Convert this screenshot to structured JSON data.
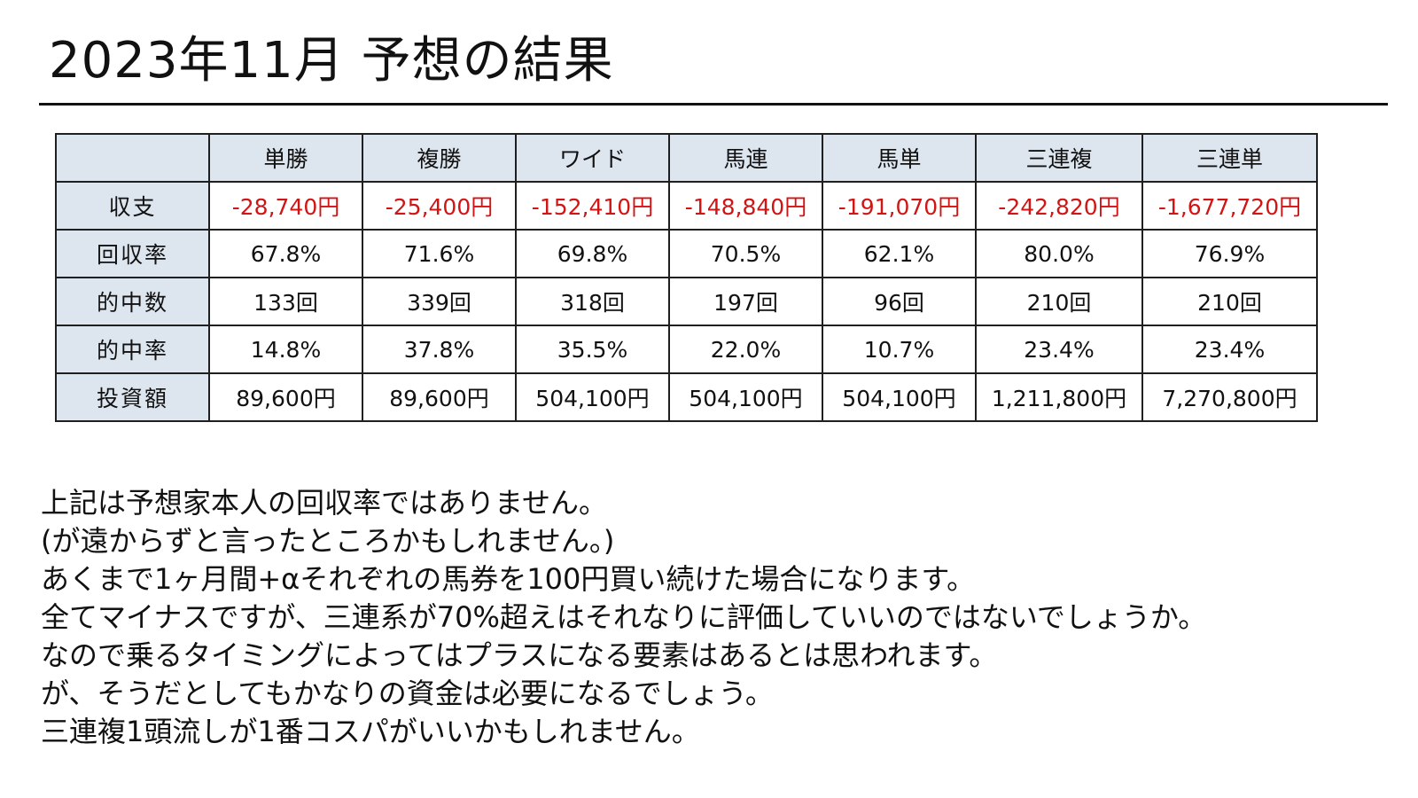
{
  "title": "2023年11月  予想の結果",
  "table": {
    "corner": "",
    "columns": [
      "単勝",
      "複勝",
      "ワイド",
      "馬連",
      "馬単",
      "三連複",
      "三連単"
    ],
    "rows": [
      {
        "label": "収支",
        "values": [
          "-28,740円",
          "-25,400円",
          "-152,410円",
          "-148,840円",
          "-191,070円",
          "-242,820円",
          "-1,677,720円"
        ]
      },
      {
        "label": "回収率",
        "values": [
          "67.8%",
          "71.6%",
          "69.8%",
          "70.5%",
          "62.1%",
          "80.0%",
          "76.9%"
        ]
      },
      {
        "label": "的中数",
        "values": [
          "133回",
          "339回",
          "318回",
          "197回",
          "96回",
          "210回",
          "210回"
        ]
      },
      {
        "label": "的中率",
        "values": [
          "14.8%",
          "37.8%",
          "35.5%",
          "22.0%",
          "10.7%",
          "23.4%",
          "23.4%"
        ]
      },
      {
        "label": "投資額",
        "values": [
          "89,600円",
          "89,600円",
          "504,100円",
          "504,100円",
          "504,100円",
          "1,211,800円",
          "7,270,800円"
        ]
      }
    ]
  },
  "notes": [
    "上記は予想家本人の回収率ではありません。",
    "(が遠からずと言ったところかもしれません。)",
    "あくまで1ヶ月間+αそれぞれの馬券を100円買い続けた場合になります。",
    "全てマイナスですが、三連系が70%超えはそれなりに評価していいのではないでしょうか。",
    "なので乗るタイミングによってはプラスになる要素はあるとは思われます。",
    "が、そうだとしてもかなりの資金は必要になるでしょう。",
    "三連複1頭流しが1番コスパがいいかもしれません。"
  ],
  "colors": {
    "header_bg": "#dde5ef",
    "negative": "#d11414",
    "border": "#1f1f1f",
    "text": "#111111"
  }
}
